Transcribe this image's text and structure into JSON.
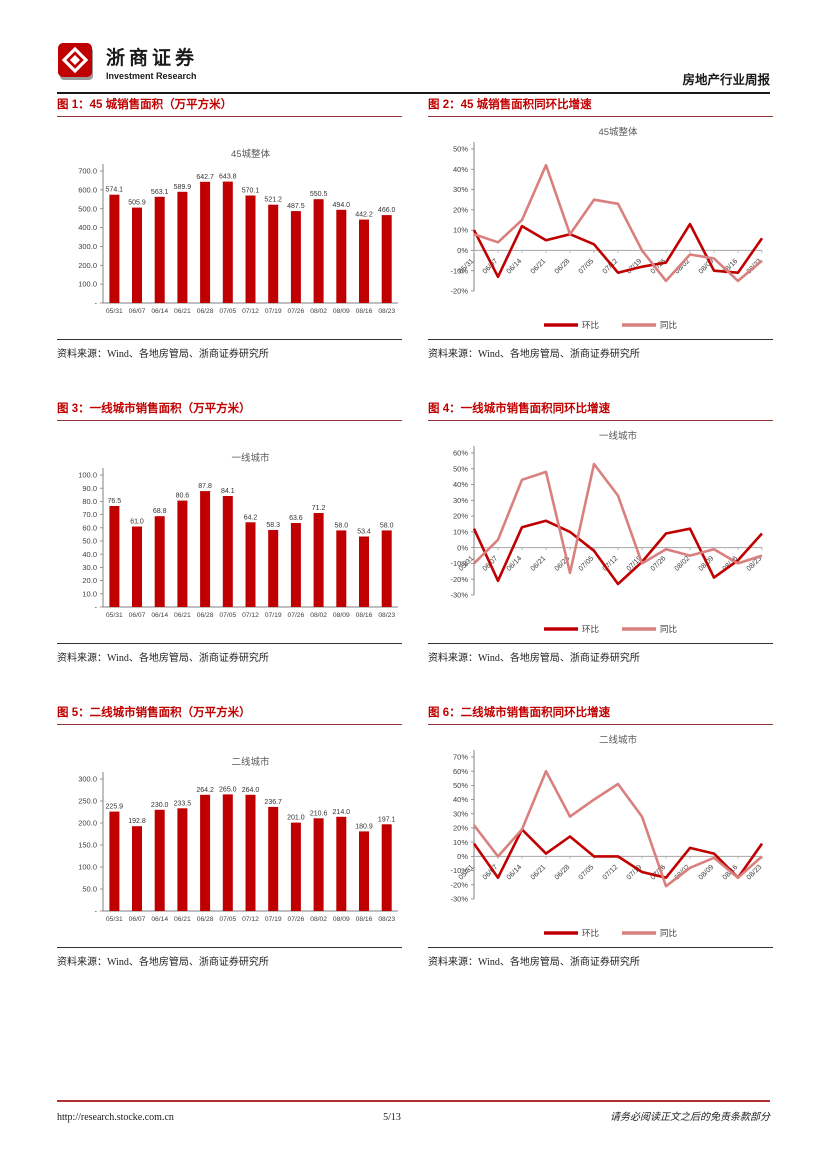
{
  "header": {
    "logo_cn": "浙商证券",
    "logo_en": "Investment Research",
    "report_type": "房地产行业周报"
  },
  "footer": {
    "url": "http://research.stocke.com.cn",
    "page": "5/13",
    "disclaimer": "请务必阅读正文之后的免责条款部分"
  },
  "source_label": "资料来源：Wind、各地房管局、浙商证券研究所",
  "colors": {
    "primary": "#c00000",
    "secondary": "#d9807e",
    "caption": "#c00000",
    "axis": "#808080",
    "zero_line": "#a6a6a6"
  },
  "figures": [
    {
      "caption": "图 1：45 城销售面积（万平方米）"
    },
    {
      "caption": "图 2：45 城销售面积同环比增速"
    },
    {
      "caption": "图 3：一线城市销售面积（万平方米）"
    },
    {
      "caption": "图 4：一线城市销售面积同环比增速"
    },
    {
      "caption": "图 5：二线城市销售面积（万平方米）"
    },
    {
      "caption": "图 6：二线城市销售面积同环比增速"
    }
  ],
  "chart_data": [
    {
      "type": "bar",
      "title": "45城整体",
      "categories": [
        "05/31",
        "06/07",
        "06/14",
        "06/21",
        "06/28",
        "07/05",
        "07/12",
        "07/19",
        "07/26",
        "08/02",
        "08/09",
        "08/16",
        "08/23"
      ],
      "values": [
        574.1,
        505.9,
        563.1,
        589.9,
        642.7,
        643.8,
        570.1,
        521.2,
        487.5,
        550.5,
        494.0,
        442.2,
        466.0
      ],
      "ylabel": "万平方米",
      "ylim": [
        0,
        700
      ],
      "ytick_step": 100,
      "grid": false
    },
    {
      "type": "line",
      "title": "45城整体",
      "categories": [
        "05/31",
        "06/07",
        "06/14",
        "06/21",
        "06/28",
        "07/05",
        "07/12",
        "07/19",
        "07/26",
        "08/02",
        "08/09",
        "08/16",
        "08/23"
      ],
      "series": [
        {
          "name": "环比",
          "values": [
            10,
            -13,
            12,
            5,
            8,
            3,
            -11,
            -8,
            -6,
            13,
            -10,
            -11,
            6
          ]
        },
        {
          "name": "同比",
          "values": [
            8,
            4,
            15,
            42,
            8,
            25,
            23,
            0,
            -15,
            -2,
            -4,
            -15,
            -5
          ]
        }
      ],
      "unit": "%",
      "ylim": [
        -20,
        50
      ],
      "ytick_step": 10,
      "legend_position": "bottom",
      "grid": false
    },
    {
      "type": "bar",
      "title": "一线城市",
      "categories": [
        "05/31",
        "06/07",
        "06/14",
        "06/21",
        "06/28",
        "07/05",
        "07/12",
        "07/19",
        "07/26",
        "08/02",
        "08/09",
        "08/16",
        "08/23"
      ],
      "values": [
        76.5,
        61.0,
        68.8,
        80.6,
        87.8,
        84.1,
        64.2,
        58.3,
        63.6,
        71.2,
        58.0,
        53.4,
        58.0
      ],
      "ylabel": "万平方米",
      "ylim": [
        0,
        100
      ],
      "ytick_step": 10,
      "grid": false
    },
    {
      "type": "line",
      "title": "一线城市",
      "categories": [
        "05/31",
        "06/07",
        "06/14",
        "06/21",
        "06/28",
        "07/05",
        "07/12",
        "07/19",
        "07/26",
        "08/02",
        "08/09",
        "08/16",
        "08/23"
      ],
      "series": [
        {
          "name": "环比",
          "values": [
            12,
            -21,
            13,
            17,
            10,
            -2,
            -23,
            -9,
            9,
            12,
            -19,
            -8,
            9
          ]
        },
        {
          "name": "同比",
          "values": [
            -10,
            5,
            43,
            48,
            -16,
            53,
            33,
            -10,
            -1,
            -5,
            -1,
            -10,
            -5
          ]
        }
      ],
      "unit": "%",
      "ylim": [
        -30,
        60
      ],
      "ytick_step": 10,
      "legend_position": "bottom",
      "grid": false
    },
    {
      "type": "bar",
      "title": "二线城市",
      "categories": [
        "05/31",
        "06/07",
        "06/14",
        "06/21",
        "06/28",
        "07/05",
        "07/12",
        "07/19",
        "07/26",
        "08/02",
        "08/09",
        "08/16",
        "08/23"
      ],
      "values": [
        225.9,
        192.8,
        230.0,
        233.5,
        264.2,
        265.0,
        264.0,
        236.7,
        201.0,
        210.6,
        214.0,
        180.9,
        197.1
      ],
      "ylabel": "万平方米",
      "ylim": [
        0,
        300
      ],
      "ytick_step": 50,
      "grid": false
    },
    {
      "type": "line",
      "title": "二线城市",
      "categories": [
        "05/31",
        "06/07",
        "06/14",
        "06/21",
        "06/28",
        "07/05",
        "07/12",
        "07/19",
        "07/26",
        "08/02",
        "08/09",
        "08/16",
        "08/23"
      ],
      "series": [
        {
          "name": "环比",
          "values": [
            9,
            -15,
            19,
            2,
            14,
            0,
            0,
            -11,
            -15,
            6,
            2,
            -15,
            9
          ]
        },
        {
          "name": "同比",
          "values": [
            22,
            0,
            19,
            60,
            28,
            40,
            51,
            28,
            -21,
            -8,
            -1,
            -15,
            0
          ]
        }
      ],
      "unit": "%",
      "ylim": [
        -30,
        70
      ],
      "ytick_step": 10,
      "legend_position": "bottom",
      "grid": false
    }
  ]
}
